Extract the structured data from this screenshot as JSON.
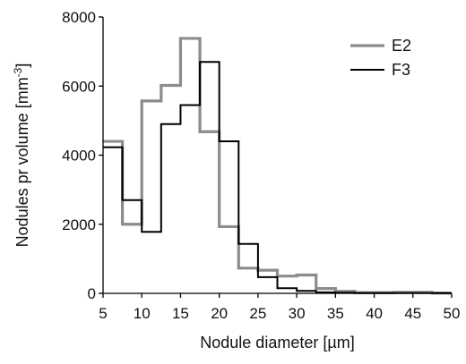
{
  "chart_data": {
    "type": "line",
    "step": true,
    "xlabel": "Nodule diameter [µm]",
    "ylabel_main": "Nodules pr volume [mm",
    "ylabel_sup": "-3",
    "ylabel_end": "]",
    "xlim": [
      5,
      50
    ],
    "ylim": [
      0,
      8000
    ],
    "x_ticks": [
      "5",
      "10",
      "15",
      "20",
      "25",
      "30",
      "35",
      "40",
      "45",
      "50"
    ],
    "y_ticks": [
      "0",
      "2000",
      "4000",
      "6000",
      "8000"
    ],
    "grid": false,
    "legend_position": "top-right",
    "bin_edges": [
      5,
      7.5,
      10,
      12.5,
      15,
      17.5,
      20,
      22.5,
      25,
      27.5,
      30,
      32.5,
      35,
      37.5,
      40,
      42.5,
      45,
      47.5,
      50
    ],
    "series": [
      {
        "name": "E2",
        "color": "#8c8c8c",
        "values": [
          4400,
          2000,
          5570,
          6020,
          7380,
          4680,
          1930,
          730,
          670,
          500,
          530,
          140,
          60,
          20,
          20,
          30,
          30,
          10
        ]
      },
      {
        "name": "F3",
        "color": "#000000",
        "values": [
          4230,
          2700,
          1780,
          4900,
          5450,
          6700,
          4400,
          1430,
          470,
          150,
          70,
          30,
          20,
          10,
          10,
          10,
          10,
          5
        ]
      }
    ]
  }
}
